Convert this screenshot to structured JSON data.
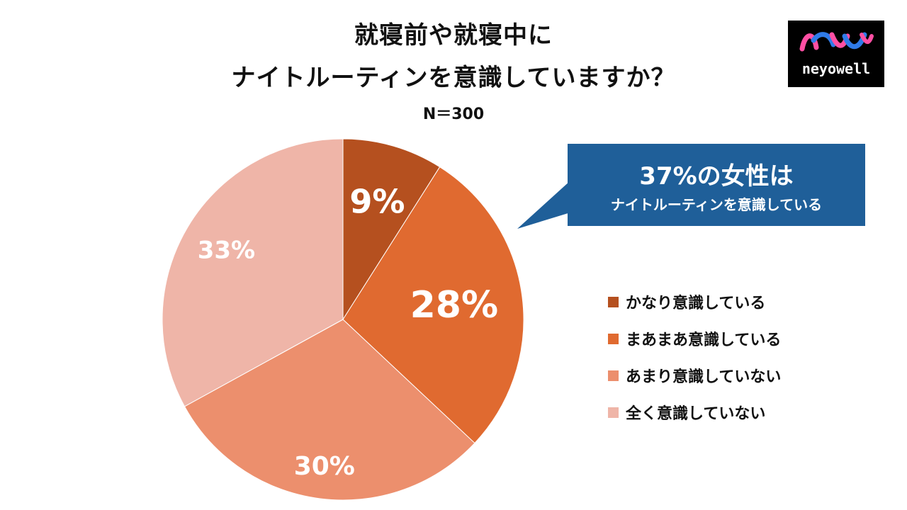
{
  "title": {
    "line1": "就寝前や就寝中に",
    "line2": "ナイトルーティンを意識していますか？"
  },
  "sample_size": "N＝300",
  "logo": {
    "text": "neyowell",
    "icon": "neyowell-logo-mark"
  },
  "callout": {
    "headline": "37%の女性は",
    "subtext": "ナイトルーティンを意識している",
    "color": "#1f5f99"
  },
  "chart_data": {
    "type": "pie",
    "title": "就寝前や就寝中にナイトルーティンを意識していますか？",
    "n": "N＝300",
    "categories": [
      "かなり意識している",
      "まあまあ意識している",
      "あまり意識していない",
      "全く意識していない"
    ],
    "values": [
      9,
      28,
      30,
      33
    ],
    "labels": [
      "9%",
      "28%",
      "30%",
      "33%"
    ],
    "colors": [
      "#b5501f",
      "#e06a30",
      "#ec8f6d",
      "#efb5a8"
    ],
    "start_angle": "12 o'clock",
    "direction": "clockwise",
    "legend_position": "right"
  }
}
